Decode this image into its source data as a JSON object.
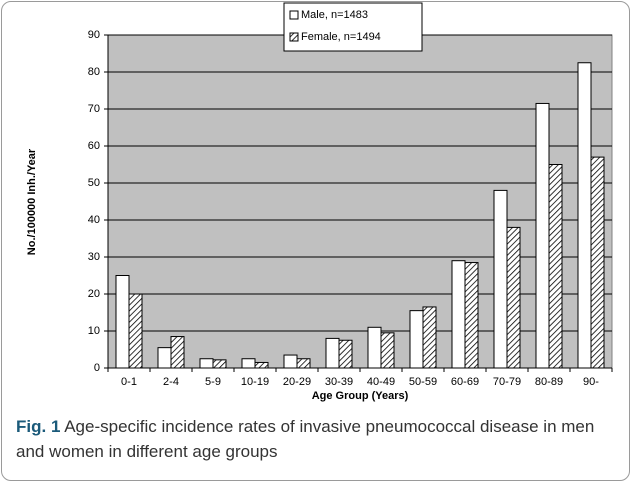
{
  "chart_data": {
    "type": "bar",
    "y_label": "No./100000 Inh./Year",
    "x_label": "Age Group (Years)",
    "caption_label": "Fig. 1",
    "caption": "Age-specific incidence rates of invasive pneumococcal disease in men and women in different age groups",
    "categories": [
      "0-1",
      "2-4",
      "5-9",
      "10-19",
      "20-29",
      "30-39",
      "40-49",
      "50-59",
      "60-69",
      "70-79",
      "80-89",
      "90-"
    ],
    "series": [
      {
        "name": "Male, n=1483",
        "color": "#ffffff",
        "pattern": "solid",
        "values": [
          25,
          5.5,
          2.5,
          2.5,
          3.5,
          8,
          11,
          15.5,
          29,
          48,
          71.5,
          82.5
        ]
      },
      {
        "name": "Female, n=1494",
        "color": "#ffffff",
        "pattern": "hatch",
        "values": [
          20,
          8.5,
          2.2,
          1.5,
          2.5,
          7.5,
          9.5,
          16.5,
          28.5,
          38,
          55,
          57
        ]
      }
    ],
    "ylim": [
      0,
      90
    ],
    "yticks": [
      0,
      10,
      20,
      30,
      40,
      50,
      60,
      70,
      80,
      90
    ],
    "grid": true,
    "plot_background": "#c0c0c0",
    "legend": "top"
  }
}
